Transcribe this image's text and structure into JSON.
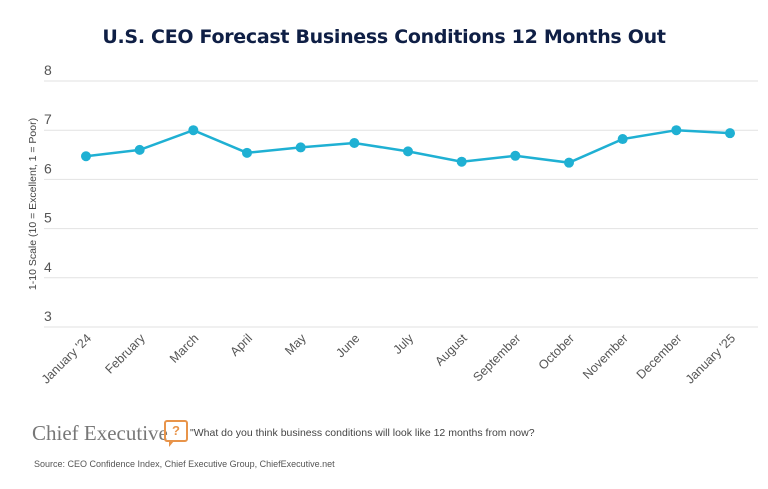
{
  "chart_data": {
    "type": "line",
    "title": "U.S. CEO Forecast Business Conditions 12 Months Out",
    "xlabel": "",
    "ylabel": "1-10 Scale (10 = Excellent, 1 = Poor)",
    "ylim": [
      3,
      8
    ],
    "yticks": [
      "3",
      "4",
      "5",
      "6",
      "7",
      "8"
    ],
    "grid": true,
    "categories": [
      "January '24",
      "February",
      "March",
      "April",
      "May",
      "June",
      "July",
      "August",
      "September",
      "October",
      "November",
      "December",
      "January '25"
    ],
    "values": [
      6.47,
      6.6,
      7.0,
      6.54,
      6.65,
      6.74,
      6.57,
      6.36,
      6.48,
      6.34,
      6.82,
      7.0,
      6.94
    ],
    "line_color": "#1fb0d3",
    "title_color": "#0f1f45"
  },
  "footer": {
    "logo": "Chief Executive",
    "question_icon": "?",
    "question": "\"What do you think business conditions will look like 12 months from now?",
    "source": "Source: CEO Confidence Index, Chief Executive Group, ChiefExecutive.net"
  }
}
